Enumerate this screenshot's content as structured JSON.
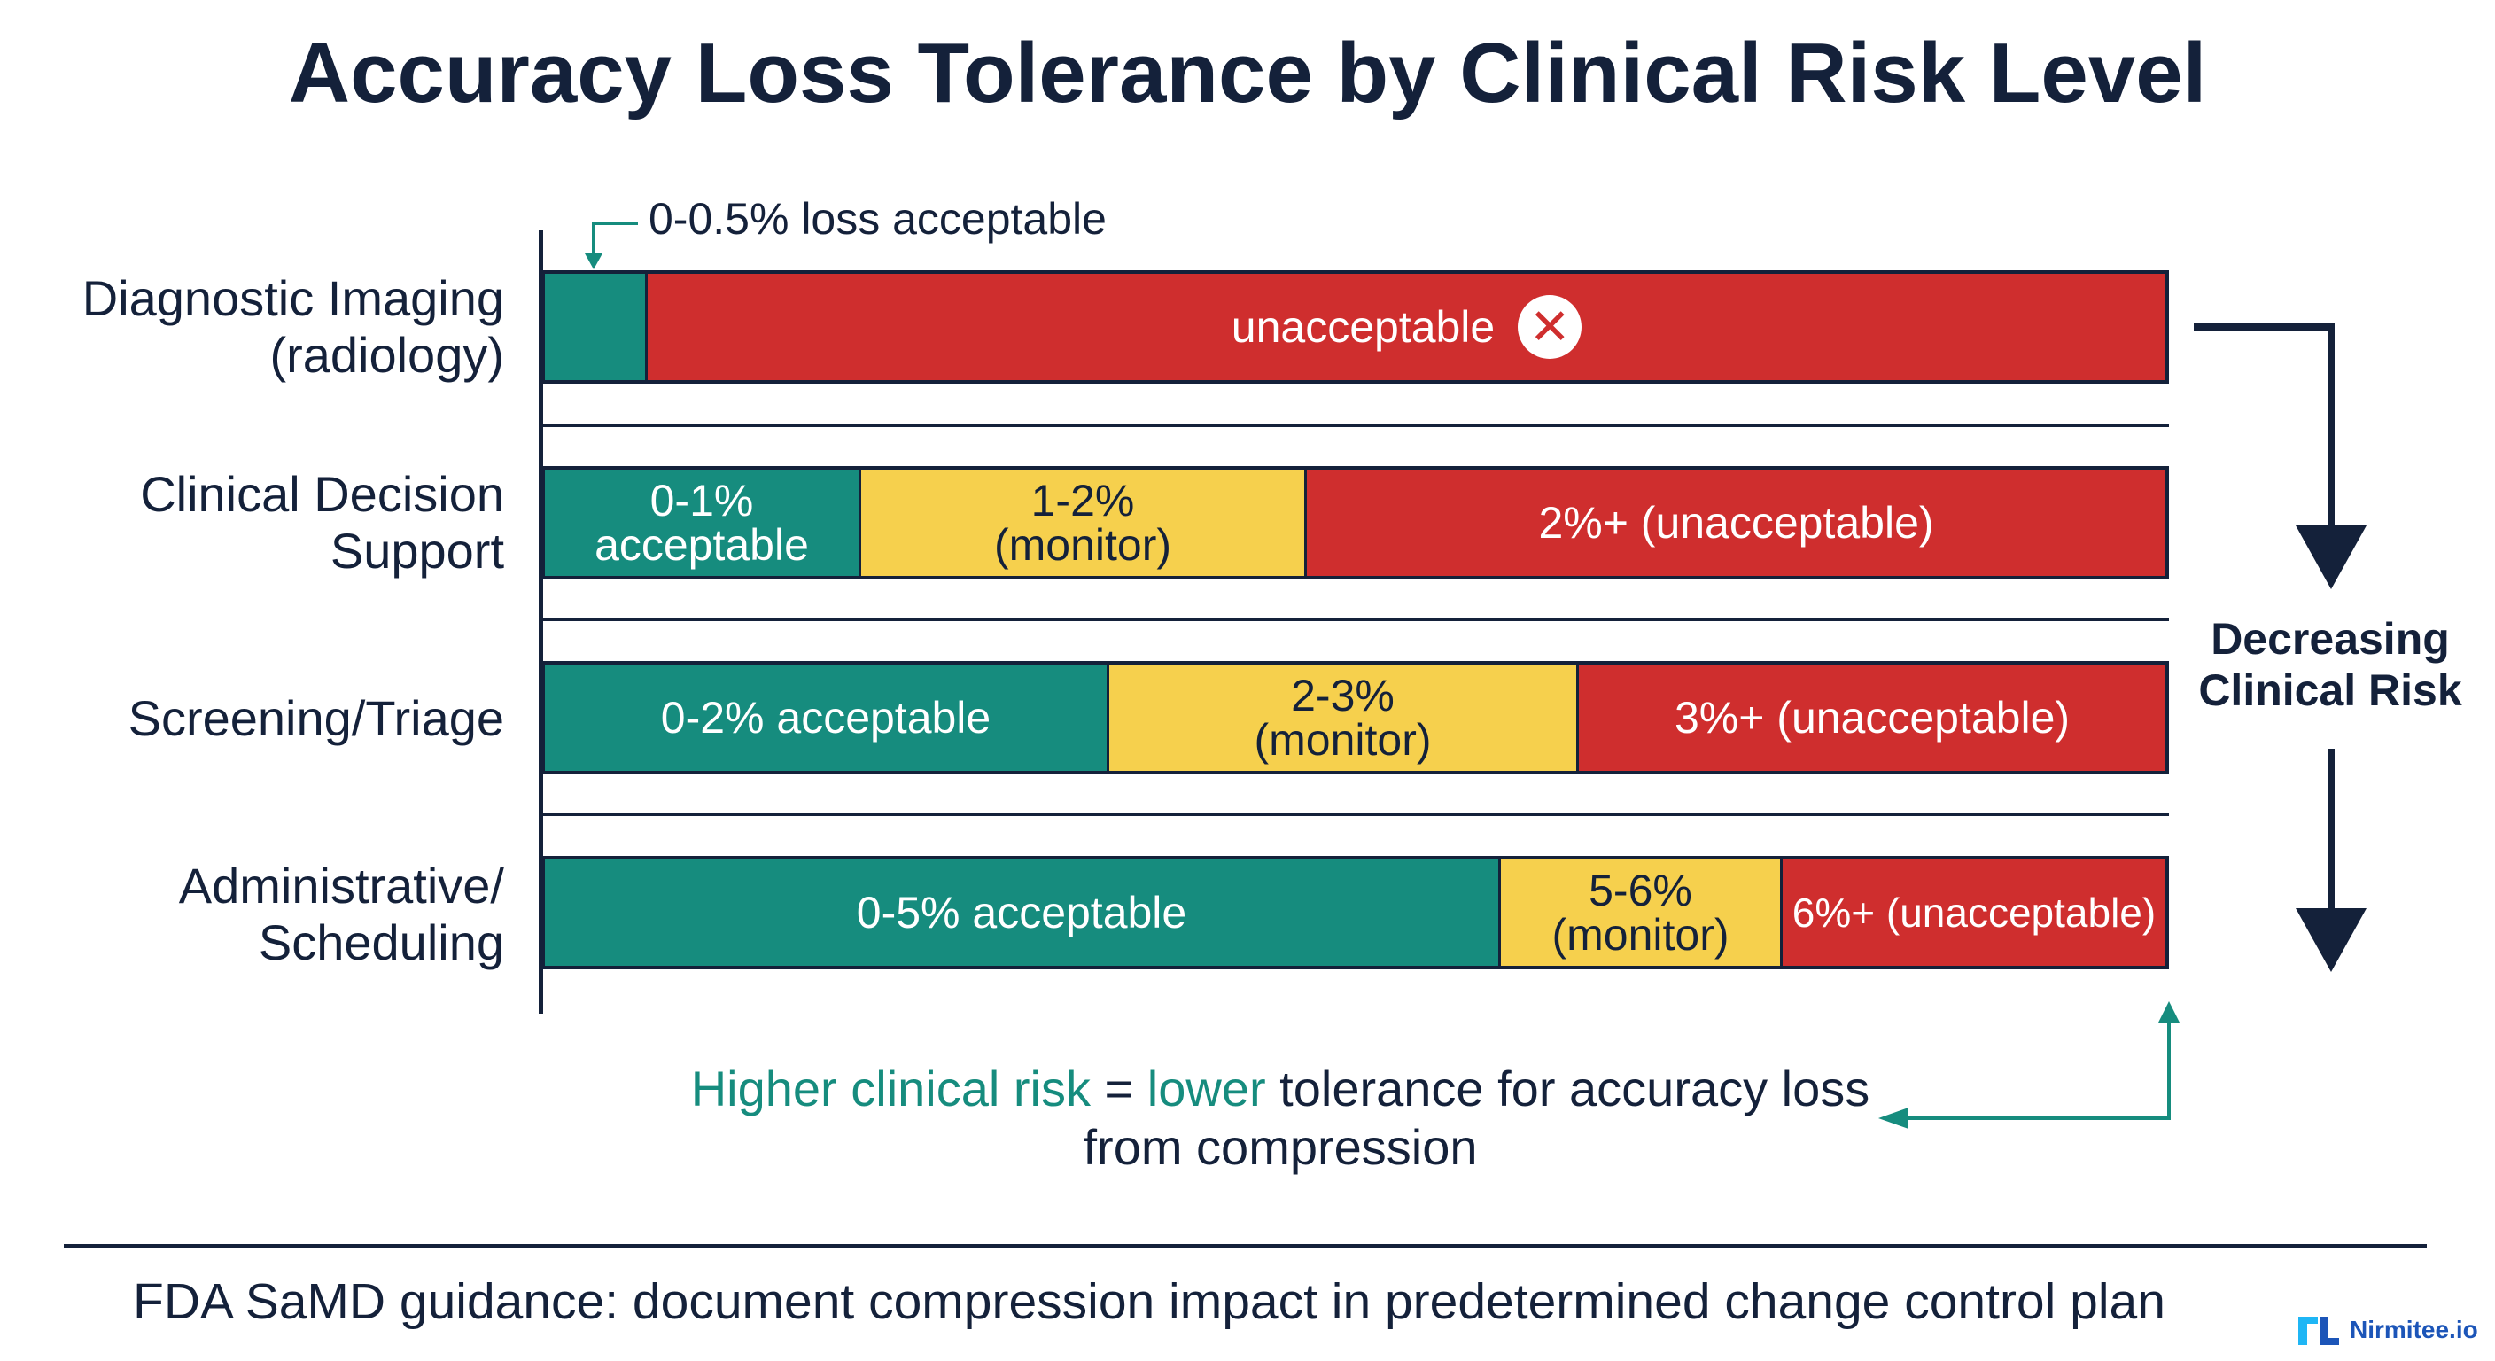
{
  "title": "Accuracy Loss Tolerance by Clinical Risk Level",
  "callout": "0-0.5% loss acceptable",
  "rows": [
    {
      "label": "Diagnostic Imaging\n(radiology)",
      "segments": [
        {
          "text": "",
          "status": "acceptable",
          "range": "0-0.5%"
        },
        {
          "text": "unacceptable",
          "status": "unacceptable",
          "icon": "x-circle-icon"
        }
      ]
    },
    {
      "label": "Clinical Decision\nSupport",
      "segments": [
        {
          "text": "0-1%\nacceptable",
          "status": "acceptable"
        },
        {
          "text": "1-2%\n(monitor)",
          "status": "monitor"
        },
        {
          "text": "2%+ (unacceptable)",
          "status": "unacceptable"
        }
      ]
    },
    {
      "label": "Screening/Triage",
      "segments": [
        {
          "text": "0-2% acceptable",
          "status": "acceptable"
        },
        {
          "text": "2-3%\n(monitor)",
          "status": "monitor"
        },
        {
          "text": "3%+ (unacceptable)",
          "status": "unacceptable"
        }
      ]
    },
    {
      "label": "Administrative/\nScheduling",
      "segments": [
        {
          "text": "0-5% acceptable",
          "status": "acceptable"
        },
        {
          "text": "5-6%\n(monitor)",
          "status": "monitor"
        },
        {
          "text": "6%+ (unacceptable)",
          "status": "unacceptable"
        }
      ]
    }
  ],
  "risk_label": "Decreasing\nClinical Risk",
  "note": {
    "part1": "Higher clinical risk",
    "part2": " = ",
    "part3": "lower",
    "part4": " tolerance for accuracy loss",
    "line2": "from compression"
  },
  "footer": "FDA SaMD guidance: document compression impact in predetermined change control plan",
  "logo": "Nirmitee.io",
  "colors": {
    "acceptable": "#168c7e",
    "monitor": "#f6d04d",
    "unacceptable": "#cf2e2e",
    "text": "#14213a"
  }
}
